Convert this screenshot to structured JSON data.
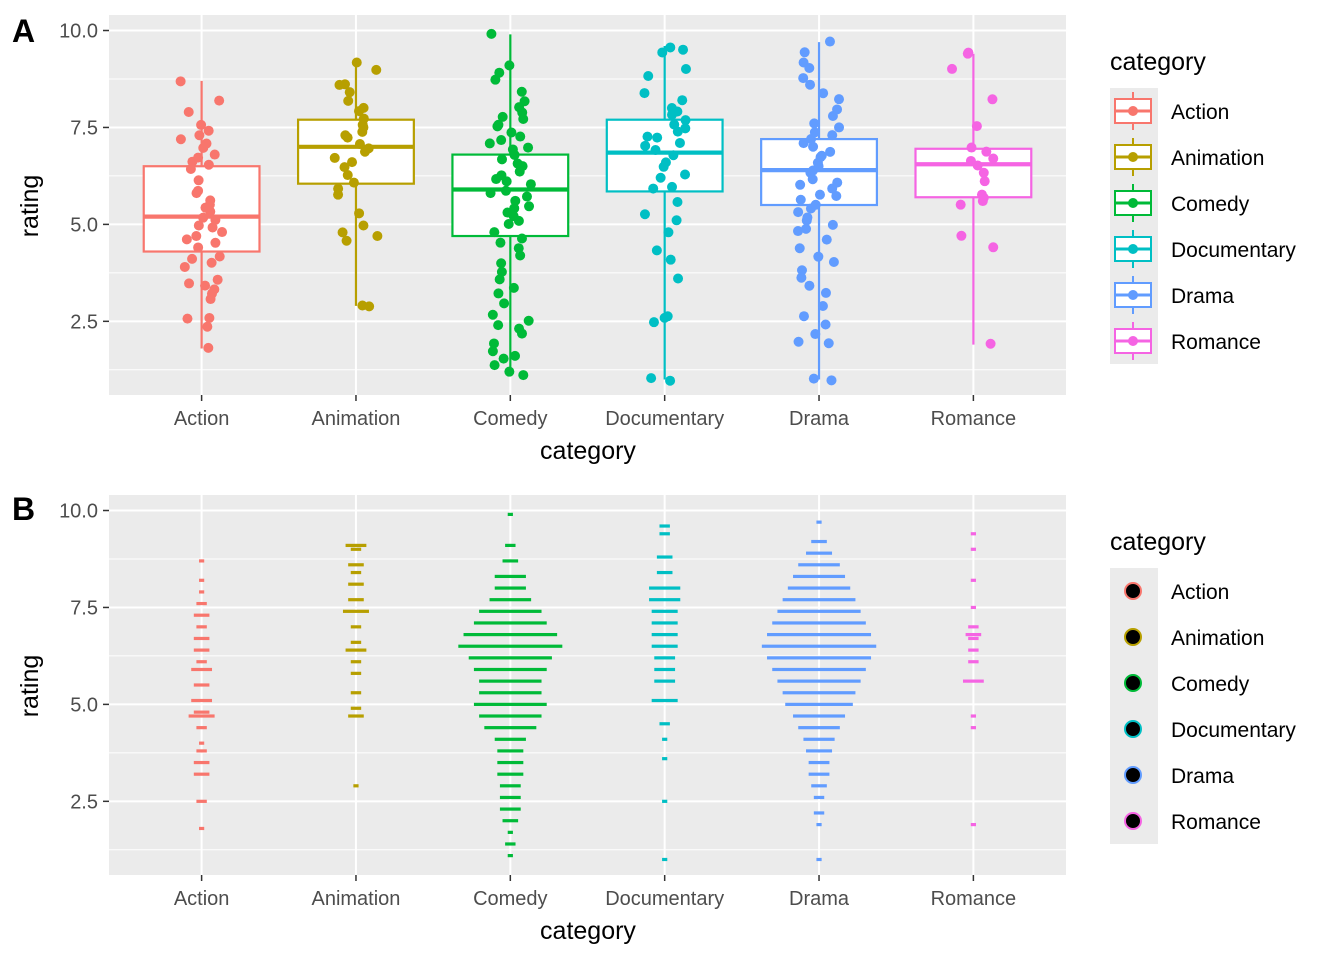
{
  "panel_tags": [
    "A",
    "B"
  ],
  "colors": {
    "panel_background": "#ebebeb",
    "grid": "#ffffff",
    "Action": "#F8766D",
    "Animation": "#B79F00",
    "Comedy": "#00BA38",
    "Documentary": "#00BFC4",
    "Drama": "#619CFF",
    "Romance": "#F564E3"
  },
  "chart_data": [
    {
      "panel": "A",
      "type": "box",
      "xlabel": "category",
      "ylabel": "rating",
      "ylim": [
        0.6,
        10.4
      ],
      "yticks": [
        2.5,
        5.0,
        7.5,
        10.0
      ],
      "ytick_labels": [
        "2.5",
        "5.0",
        "7.5",
        "10.0"
      ],
      "categories": [
        "Action",
        "Animation",
        "Comedy",
        "Documentary",
        "Drama",
        "Romance"
      ],
      "legend": {
        "title": "category",
        "position": "right",
        "entries": [
          "Action",
          "Animation",
          "Comedy",
          "Documentary",
          "Drama",
          "Romance"
        ]
      },
      "grid": true,
      "boxes": [
        {
          "category": "Action",
          "min": 1.8,
          "q1": 4.3,
          "median": 5.2,
          "q3": 6.5,
          "max": 8.7
        },
        {
          "category": "Animation",
          "min": 2.9,
          "q1": 6.05,
          "median": 7.0,
          "q3": 7.7,
          "max": 9.2
        },
        {
          "category": "Comedy",
          "min": 1.1,
          "q1": 4.7,
          "median": 5.9,
          "q3": 6.8,
          "max": 9.9
        },
        {
          "category": "Documentary",
          "min": 1.0,
          "q1": 5.85,
          "median": 6.85,
          "q3": 7.7,
          "max": 9.6
        },
        {
          "category": "Drama",
          "min": 1.0,
          "q1": 5.5,
          "median": 6.4,
          "q3": 7.2,
          "max": 9.7
        },
        {
          "category": "Romance",
          "min": 1.9,
          "q1": 5.7,
          "median": 6.55,
          "q3": 6.95,
          "max": 9.4
        }
      ],
      "points": {
        "Action": [
          1.8,
          2.4,
          2.6,
          2.6,
          3.1,
          3.2,
          3.3,
          3.4,
          3.5,
          3.6,
          3.9,
          4.0,
          4.1,
          4.2,
          4.4,
          4.5,
          4.6,
          4.7,
          4.8,
          4.9,
          5.0,
          5.1,
          5.2,
          5.3,
          5.4,
          5.5,
          5.6,
          5.8,
          5.9,
          6.1,
          6.4,
          6.5,
          6.6,
          6.7,
          6.8,
          7.0,
          7.1,
          7.2,
          7.3,
          7.4,
          7.6,
          7.9,
          8.2,
          8.7
        ],
        "Animation": [
          2.9,
          2.9,
          4.6,
          4.7,
          4.8,
          5.0,
          5.3,
          5.8,
          5.9,
          6.1,
          6.3,
          6.5,
          6.6,
          6.7,
          6.9,
          7.0,
          7.1,
          7.2,
          7.3,
          7.4,
          7.5,
          7.6,
          7.7,
          7.9,
          8.0,
          8.2,
          8.4,
          8.6,
          8.6,
          9.0,
          9.2
        ],
        "Comedy": [
          1.1,
          1.2,
          1.4,
          1.5,
          1.6,
          1.7,
          1.9,
          2.2,
          2.3,
          2.4,
          2.5,
          2.7,
          3.0,
          3.2,
          3.4,
          3.6,
          3.8,
          4.0,
          4.2,
          4.4,
          4.5,
          4.6,
          4.8,
          5.0,
          5.1,
          5.2,
          5.3,
          5.4,
          5.5,
          5.6,
          5.7,
          5.8,
          5.9,
          6.0,
          6.1,
          6.2,
          6.3,
          6.4,
          6.5,
          6.6,
          6.7,
          6.8,
          6.9,
          7.0,
          7.1,
          7.2,
          7.3,
          7.4,
          7.5,
          7.6,
          7.7,
          7.8,
          7.9,
          8.0,
          8.2,
          8.4,
          8.7,
          8.9,
          9.1,
          9.9
        ],
        "Documentary": [
          1.0,
          1.0,
          2.5,
          2.6,
          2.6,
          3.6,
          4.1,
          4.3,
          4.8,
          5.1,
          5.3,
          5.6,
          5.9,
          6.0,
          6.2,
          6.3,
          6.5,
          6.6,
          6.8,
          6.9,
          7.0,
          7.1,
          7.2,
          7.3,
          7.4,
          7.5,
          7.6,
          7.7,
          7.8,
          7.9,
          8.0,
          8.2,
          8.4,
          8.8,
          9.0,
          9.4,
          9.5,
          9.6
        ],
        "Drama": [
          1.0,
          1.0,
          1.9,
          2.0,
          2.2,
          2.4,
          2.6,
          2.9,
          3.2,
          3.4,
          3.6,
          3.8,
          4.0,
          4.2,
          4.4,
          4.6,
          4.8,
          4.9,
          5.0,
          5.1,
          5.2,
          5.3,
          5.4,
          5.5,
          5.6,
          5.7,
          5.8,
          5.9,
          6.0,
          6.1,
          6.2,
          6.3,
          6.4,
          6.5,
          6.6,
          6.7,
          6.8,
          6.9,
          7.0,
          7.1,
          7.2,
          7.3,
          7.4,
          7.5,
          7.6,
          7.8,
          8.0,
          8.2,
          8.4,
          8.6,
          8.8,
          9.0,
          9.2,
          9.4,
          9.7
        ],
        "Romance": [
          1.9,
          4.4,
          4.7,
          5.5,
          5.6,
          5.7,
          5.8,
          6.1,
          6.3,
          6.5,
          6.6,
          6.7,
          6.9,
          7.0,
          7.5,
          8.2,
          9.0,
          9.4,
          9.4
        ]
      }
    },
    {
      "panel": "B",
      "type": "dotplot",
      "xlabel": "category",
      "ylabel": "rating",
      "ylim": [
        0.6,
        10.4
      ],
      "yticks": [
        2.5,
        5.0,
        7.5,
        10.0
      ],
      "ytick_labels": [
        "2.5",
        "5.0",
        "7.5",
        "10.0"
      ],
      "categories": [
        "Action",
        "Animation",
        "Comedy",
        "Documentary",
        "Drama",
        "Romance"
      ],
      "legend": {
        "title": "category",
        "position": "right",
        "entries": [
          "Action",
          "Animation",
          "Comedy",
          "Documentary",
          "Drama",
          "Romance"
        ]
      },
      "grid": true,
      "bins": {
        "Action": [
          [
            1.8,
            1
          ],
          [
            2.5,
            2
          ],
          [
            3.2,
            3
          ],
          [
            3.5,
            3
          ],
          [
            3.8,
            2
          ],
          [
            4.0,
            1
          ],
          [
            4.4,
            2
          ],
          [
            4.7,
            5
          ],
          [
            4.8,
            3
          ],
          [
            5.1,
            4
          ],
          [
            5.5,
            3
          ],
          [
            5.9,
            4
          ],
          [
            6.1,
            2
          ],
          [
            6.4,
            3
          ],
          [
            6.7,
            3
          ],
          [
            7.0,
            2
          ],
          [
            7.3,
            3
          ],
          [
            7.6,
            2
          ],
          [
            7.9,
            1
          ],
          [
            8.2,
            1
          ],
          [
            8.7,
            1
          ]
        ],
        "Animation": [
          [
            2.9,
            1
          ],
          [
            4.7,
            3
          ],
          [
            4.9,
            2
          ],
          [
            5.3,
            2
          ],
          [
            5.8,
            2
          ],
          [
            6.1,
            2
          ],
          [
            6.4,
            4
          ],
          [
            6.6,
            2
          ],
          [
            7.0,
            2
          ],
          [
            7.4,
            5
          ],
          [
            7.7,
            3
          ],
          [
            8.1,
            3
          ],
          [
            8.4,
            2
          ],
          [
            8.6,
            3
          ],
          [
            9.0,
            2
          ],
          [
            9.1,
            4
          ]
        ],
        "Comedy": [
          [
            1.1,
            1
          ],
          [
            1.4,
            2
          ],
          [
            1.7,
            1
          ],
          [
            2.0,
            3
          ],
          [
            2.3,
            4
          ],
          [
            2.6,
            4
          ],
          [
            2.9,
            4
          ],
          [
            3.2,
            5
          ],
          [
            3.5,
            5
          ],
          [
            3.8,
            5
          ],
          [
            4.1,
            6
          ],
          [
            4.4,
            10
          ],
          [
            4.7,
            12
          ],
          [
            5.0,
            14
          ],
          [
            5.3,
            12
          ],
          [
            5.6,
            12
          ],
          [
            5.9,
            14
          ],
          [
            6.2,
            16
          ],
          [
            6.5,
            20
          ],
          [
            6.8,
            18
          ],
          [
            7.1,
            14
          ],
          [
            7.4,
            12
          ],
          [
            7.7,
            8
          ],
          [
            8.0,
            6
          ],
          [
            8.3,
            6
          ],
          [
            8.7,
            3
          ],
          [
            9.1,
            2
          ],
          [
            9.9,
            1
          ]
        ],
        "Documentary": [
          [
            1.0,
            1
          ],
          [
            2.5,
            1
          ],
          [
            3.6,
            1
          ],
          [
            4.1,
            1
          ],
          [
            4.5,
            2
          ],
          [
            5.1,
            5
          ],
          [
            5.6,
            4
          ],
          [
            5.9,
            4
          ],
          [
            6.2,
            4
          ],
          [
            6.5,
            5
          ],
          [
            6.8,
            5
          ],
          [
            7.1,
            5
          ],
          [
            7.4,
            5
          ],
          [
            7.7,
            6
          ],
          [
            8.0,
            6
          ],
          [
            8.4,
            3
          ],
          [
            8.8,
            3
          ],
          [
            9.4,
            2
          ],
          [
            9.6,
            2
          ]
        ],
        "Drama": [
          [
            1.0,
            1
          ],
          [
            1.9,
            1
          ],
          [
            2.2,
            2
          ],
          [
            2.6,
            2
          ],
          [
            2.9,
            3
          ],
          [
            3.2,
            4
          ],
          [
            3.5,
            4
          ],
          [
            3.8,
            5
          ],
          [
            4.1,
            6
          ],
          [
            4.4,
            8
          ],
          [
            4.7,
            10
          ],
          [
            5.0,
            13
          ],
          [
            5.3,
            14
          ],
          [
            5.6,
            16
          ],
          [
            5.9,
            18
          ],
          [
            6.2,
            20
          ],
          [
            6.5,
            22
          ],
          [
            6.8,
            20
          ],
          [
            7.1,
            18
          ],
          [
            7.4,
            16
          ],
          [
            7.7,
            14
          ],
          [
            8.0,
            12
          ],
          [
            8.3,
            10
          ],
          [
            8.6,
            8
          ],
          [
            8.9,
            5
          ],
          [
            9.2,
            3
          ],
          [
            9.7,
            1
          ]
        ],
        "Romance": [
          [
            1.9,
            1
          ],
          [
            4.4,
            1
          ],
          [
            4.7,
            1
          ],
          [
            5.6,
            4
          ],
          [
            6.1,
            2
          ],
          [
            6.4,
            2
          ],
          [
            6.7,
            2
          ],
          [
            6.8,
            3
          ],
          [
            7.0,
            2
          ],
          [
            7.5,
            1
          ],
          [
            8.2,
            1
          ],
          [
            9.0,
            1
          ],
          [
            9.4,
            1
          ]
        ]
      }
    }
  ]
}
